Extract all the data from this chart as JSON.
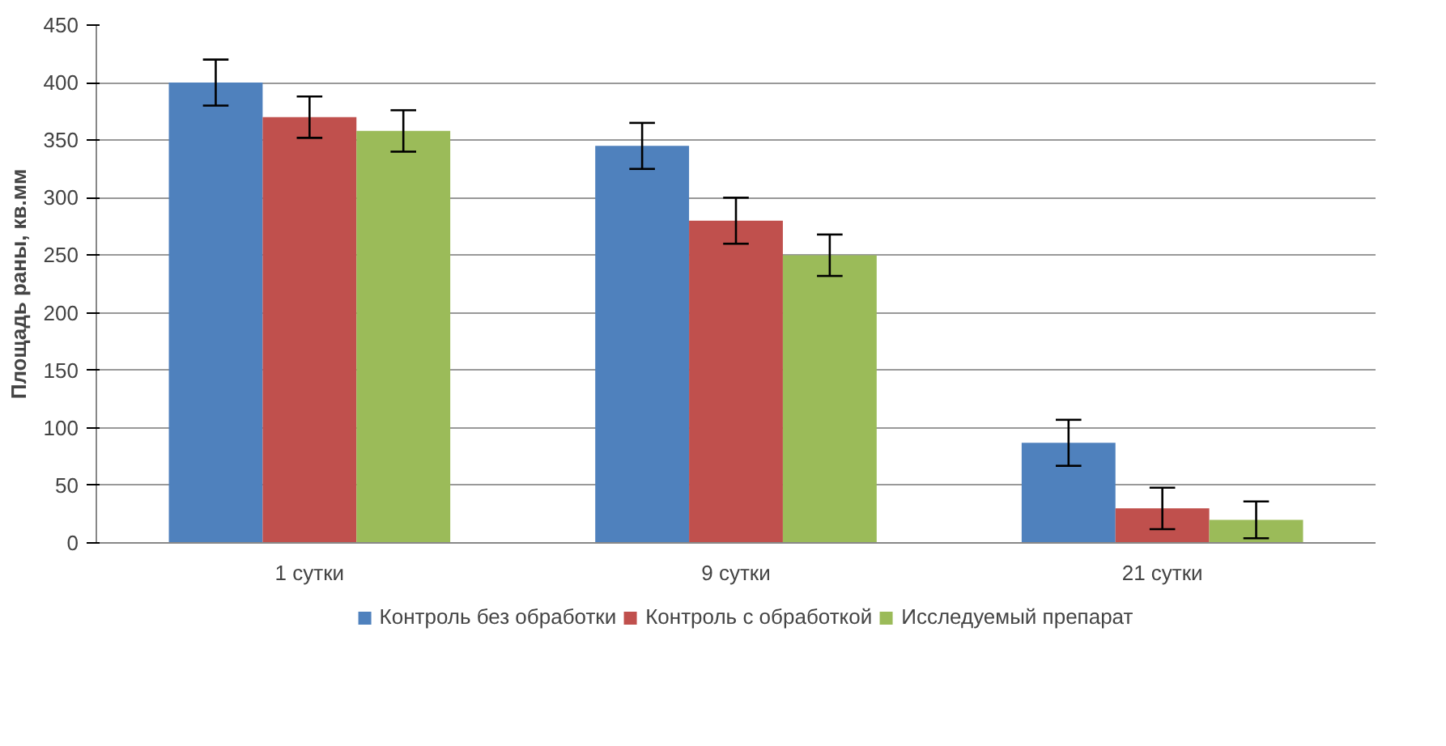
{
  "chart_data": {
    "type": "bar",
    "ylabel": "Площадь раны, кв.мм",
    "categories": [
      "1 сутки",
      "9 сутки",
      "21 сутки"
    ],
    "series": [
      {
        "name": "Контроль без обработки",
        "color": "#4f81bd",
        "values": [
          400,
          345,
          87
        ],
        "errors": [
          20,
          20,
          20
        ]
      },
      {
        "name": "Контроль с обработкой",
        "color": "#c0504d",
        "values": [
          370,
          280,
          30
        ],
        "errors": [
          18,
          20,
          18
        ]
      },
      {
        "name": "Исследуемый препарат",
        "color": "#9bbb59",
        "values": [
          358,
          250,
          20
        ],
        "errors": [
          18,
          18,
          16
        ]
      }
    ],
    "ylim": [
      0,
      450
    ],
    "yticks": [
      0,
      50,
      100,
      150,
      200,
      250,
      300,
      350,
      400,
      450
    ],
    "grid": "y",
    "legend": "bottom"
  }
}
